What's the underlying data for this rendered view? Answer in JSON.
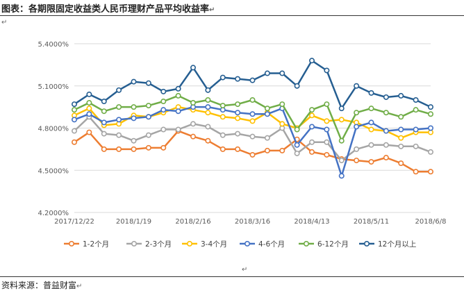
{
  "title": "图表：各期限固定收益类人民币理财产品平均收益率",
  "pilcrow": "↵",
  "source": "资料来源：普益财富",
  "chart_data": {
    "type": "line",
    "title": "",
    "xlabel": "",
    "ylabel": "",
    "ylim": [
      4.2,
      5.4
    ],
    "yticks": [
      "4.2000%",
      "4.5000%",
      "4.8000%",
      "5.1000%",
      "5.4000%"
    ],
    "ytick_values": [
      4.2,
      4.5,
      4.8,
      5.1,
      5.4
    ],
    "x": [
      "2017/12/22",
      "2017/12/29",
      "2018/1/5",
      "2018/1/12",
      "2018/1/19",
      "2018/1/26",
      "2018/2/2",
      "2018/2/9",
      "2018/2/16",
      "2018/2/23",
      "2018/3/2",
      "2018/3/9",
      "2018/3/16",
      "2018/3/23",
      "2018/3/30",
      "2018/4/6",
      "2018/4/13",
      "2018/4/20",
      "2018/4/27",
      "2018/5/4",
      "2018/5/11",
      "2018/5/18",
      "2018/5/25",
      "2018/6/1",
      "2018/6/8"
    ],
    "xtick_labels": [
      "2017/12/22",
      "2018/1/19",
      "2018/2/16",
      "2018/3/16",
      "2018/4/13",
      "2018/5/11",
      "2018/6/8"
    ],
    "xtick_index": [
      0,
      4,
      8,
      12,
      16,
      20,
      24
    ],
    "grid": "horizontal",
    "legend_position": "bottom",
    "series": [
      {
        "name": "1-2个月",
        "color": "#ED7D31",
        "values": [
          4.7,
          4.77,
          4.65,
          4.65,
          4.65,
          4.66,
          4.66,
          4.78,
          4.74,
          4.71,
          4.65,
          4.65,
          4.61,
          4.64,
          4.64,
          4.72,
          4.63,
          4.61,
          4.58,
          4.57,
          4.56,
          4.59,
          4.55,
          4.49,
          4.49
        ]
      },
      {
        "name": "2-3个月",
        "color": "#A5A5A5",
        "values": [
          4.78,
          4.88,
          4.76,
          4.75,
          4.71,
          4.75,
          4.79,
          4.79,
          4.83,
          4.81,
          4.75,
          4.76,
          4.74,
          4.73,
          4.8,
          4.62,
          4.7,
          4.7,
          4.57,
          4.65,
          4.68,
          4.68,
          4.67,
          4.67,
          4.63
        ]
      },
      {
        "name": "3-4个月",
        "color": "#FFC000",
        "values": [
          4.89,
          4.94,
          4.82,
          4.83,
          4.89,
          4.88,
          4.91,
          4.95,
          4.93,
          4.91,
          4.88,
          4.87,
          4.85,
          4.91,
          4.83,
          4.8,
          4.89,
          4.85,
          4.86,
          4.84,
          4.79,
          4.78,
          4.73,
          4.77,
          4.77
        ]
      },
      {
        "name": "4-6个月",
        "color": "#4472C4",
        "values": [
          4.86,
          4.9,
          4.84,
          4.86,
          4.87,
          4.88,
          4.93,
          4.92,
          4.95,
          4.95,
          4.93,
          4.91,
          4.9,
          4.9,
          4.94,
          4.68,
          4.81,
          4.79,
          4.46,
          4.81,
          4.84,
          4.78,
          4.79,
          4.79,
          4.8
        ]
      },
      {
        "name": "6-12个月",
        "color": "#70AD47",
        "values": [
          4.93,
          4.98,
          4.92,
          4.95,
          4.95,
          4.96,
          4.99,
          5.03,
          4.98,
          5.0,
          4.96,
          4.97,
          5.0,
          4.94,
          4.97,
          4.79,
          4.93,
          4.97,
          4.71,
          4.91,
          4.94,
          4.91,
          4.88,
          4.93,
          4.9
        ]
      },
      {
        "name": "12个月以上",
        "color": "#255E91",
        "values": [
          4.97,
          5.04,
          4.99,
          5.07,
          5.13,
          5.12,
          5.06,
          5.08,
          5.23,
          5.07,
          5.16,
          5.15,
          5.14,
          5.19,
          5.19,
          5.1,
          5.28,
          5.21,
          4.94,
          5.1,
          5.05,
          5.02,
          5.03,
          5.0,
          4.95
        ]
      }
    ]
  }
}
